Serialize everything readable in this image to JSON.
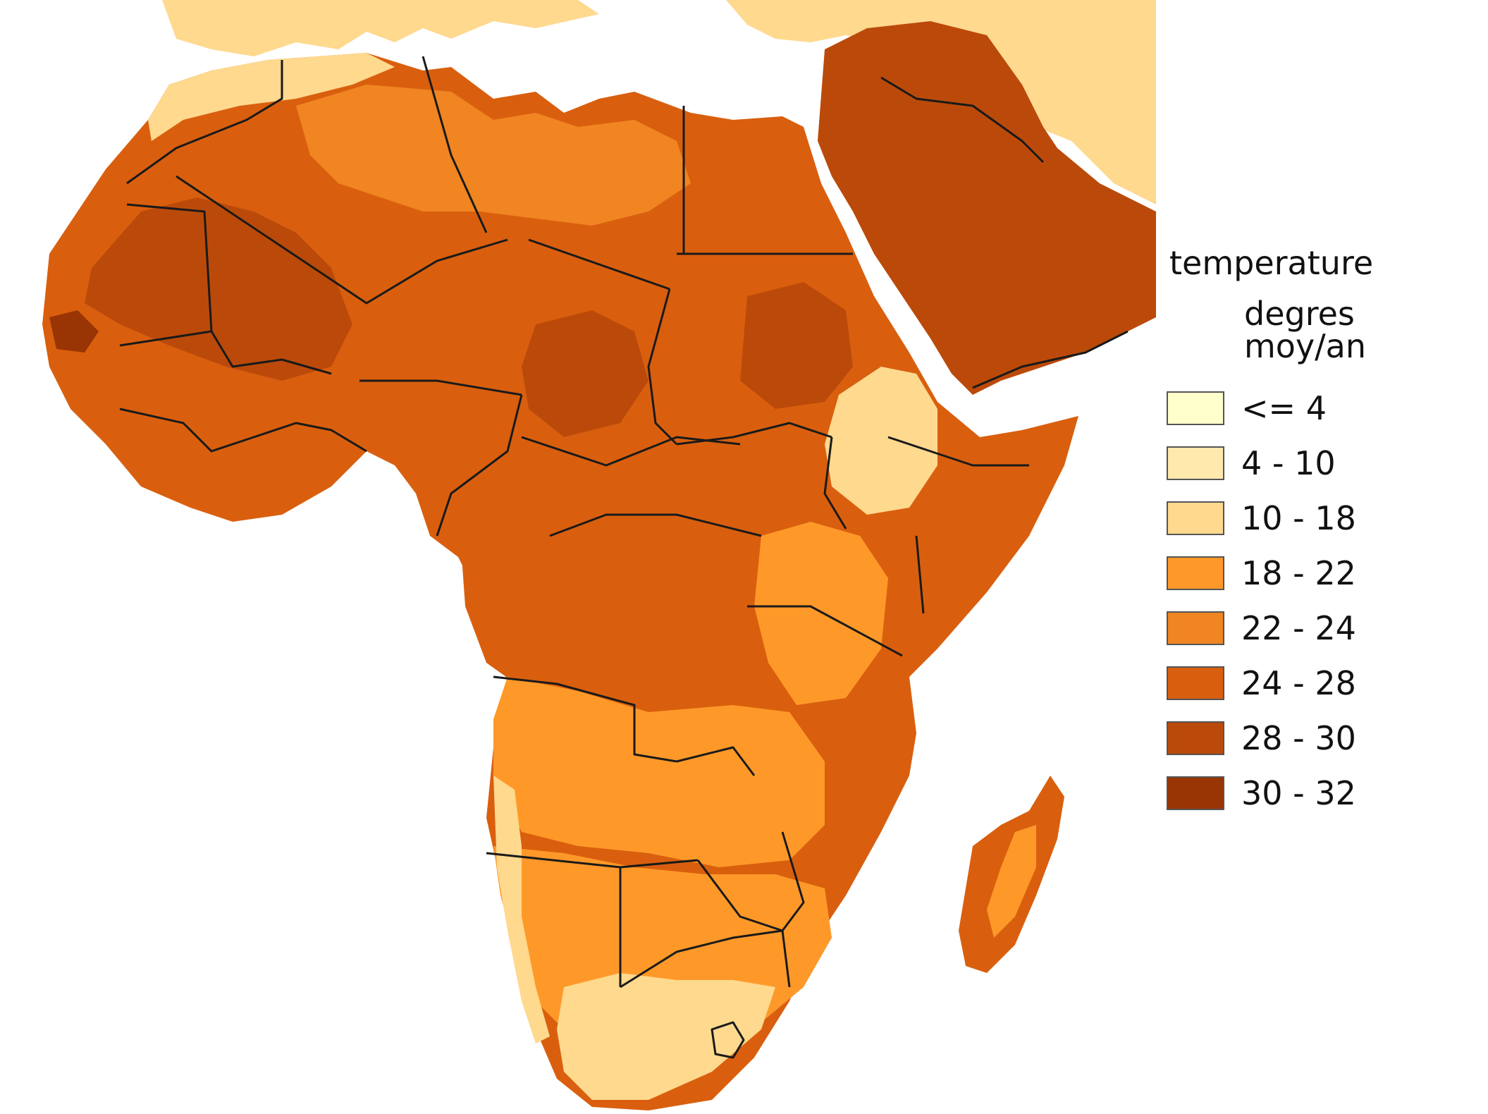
{
  "map": {
    "region": "Africa",
    "colors": {
      "sea": "#ffffff",
      "border": "#1a1a1a"
    }
  },
  "legend": {
    "title": "temperature",
    "subtitle": "degres moy/an",
    "classes": [
      {
        "label": "<= 4",
        "color": "#ffffcc"
      },
      {
        "label": "4 - 10",
        "color": "#ffe9ad"
      },
      {
        "label": "10 - 18",
        "color": "#fed98e"
      },
      {
        "label": "18 - 22",
        "color": "#fe9929"
      },
      {
        "label": "22 - 24",
        "color": "#f08521"
      },
      {
        "label": "24 - 28",
        "color": "#d95f0e"
      },
      {
        "label": "28 - 30",
        "color": "#bb4a0a"
      },
      {
        "label": "30 - 32",
        "color": "#993404"
      }
    ]
  }
}
